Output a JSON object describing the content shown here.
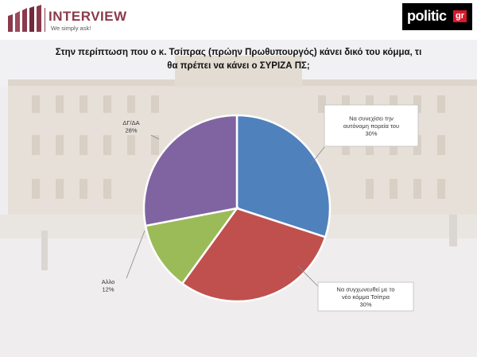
{
  "header": {
    "interview_brand": "INTERVIEW",
    "interview_tagline": "We simply ask!",
    "politic_word": "politic",
    "politic_gr": "gr"
  },
  "colors": {
    "blue": "#4f81bd",
    "red": "#c0504d",
    "green": "#9bbb59",
    "purple": "#8064a2"
  },
  "chart_data": {
    "type": "pie",
    "title_lines": [
      "Στην περίπτωση που ο κ. Τσίπρας (πρώην Πρωθυπουργός) κάνει δικό του κόμμα, τι",
      "θα πρέπει να κάνει ο ΣΥΡΙΖΑ ΠΣ;"
    ],
    "slices": [
      {
        "label_lines": [
          "Να συνεχίσει την",
          "αυτόνομη πορεία του"
        ],
        "value": 30,
        "value_text": "30%",
        "color": "#4f81bd"
      },
      {
        "label_lines": [
          "Να συγχωνευθεί με το",
          "νέο κόμμα Τσίπρα"
        ],
        "value": 30,
        "value_text": "30%",
        "color": "#c0504d"
      },
      {
        "label_lines": [
          "Αλλο"
        ],
        "value": 12,
        "value_text": "12%",
        "color": "#9bbb59"
      },
      {
        "label_lines": [
          "ΔΓ/ΔΑ"
        ],
        "value": 28,
        "value_text": "28%",
        "color": "#8064a2"
      }
    ]
  }
}
